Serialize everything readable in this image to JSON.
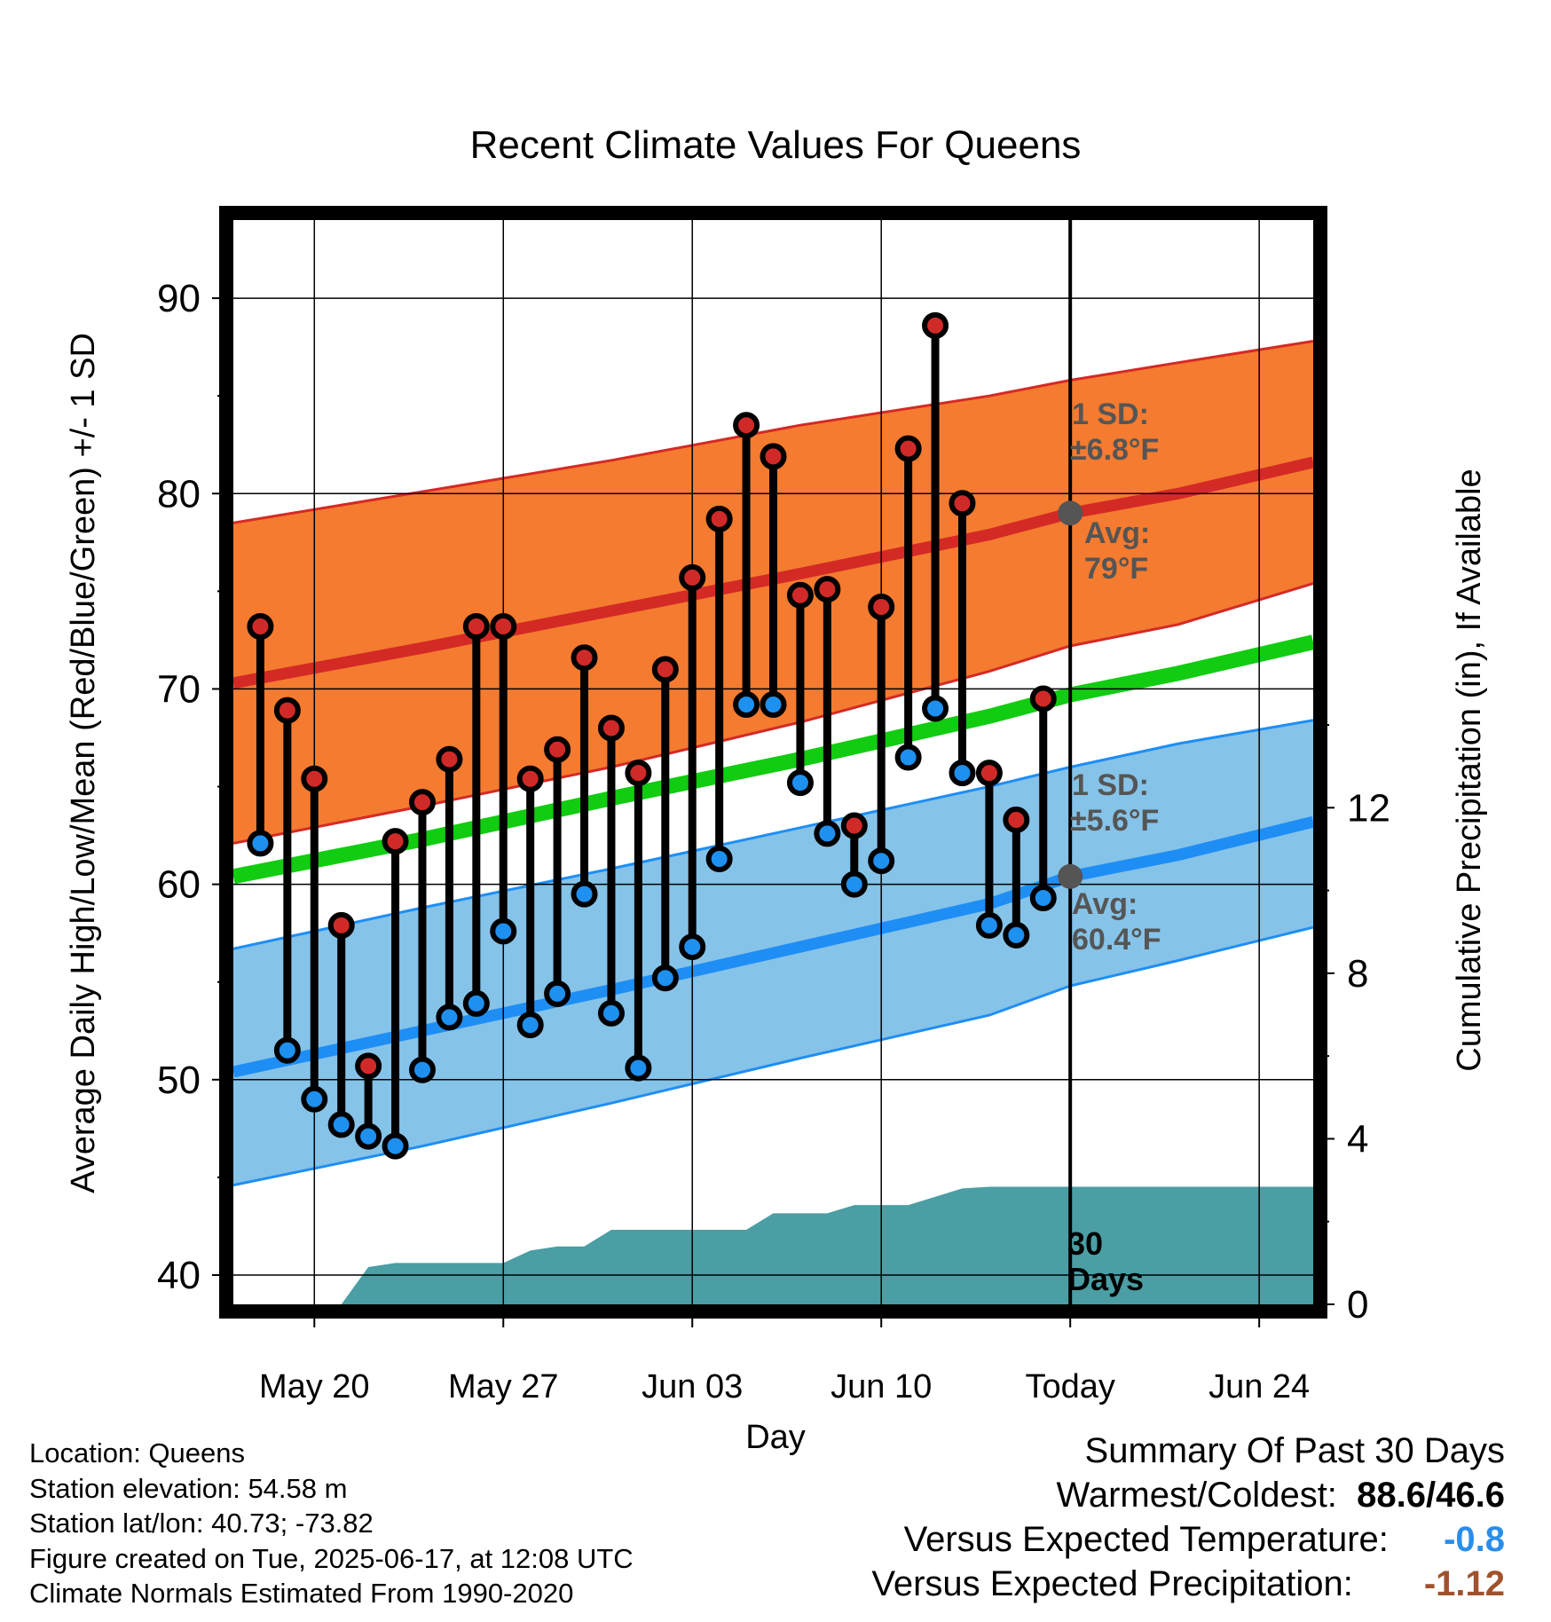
{
  "chart_data": {
    "type": "line",
    "title": "Recent Climate Values For Queens",
    "xlabel": "Day",
    "ylabel": "Average Daily High/Low/Mean (Red/Blue/Green) +/- 1 SD",
    "y2label": "Cumulative Precipitation (in), If Available",
    "ylim": [
      38.5,
      94
    ],
    "y2lim": [
      0,
      26.2
    ],
    "yticks": [
      "40",
      "50",
      "60",
      "70",
      "80",
      "90"
    ],
    "y2ticks": [
      "0",
      "4",
      "8",
      "12"
    ],
    "xlim": [
      "2025-05-17",
      "2025-06-26"
    ],
    "xticks": [
      {
        "date": "2025-05-20",
        "label": "May 20"
      },
      {
        "date": "2025-05-27",
        "label": "May 27"
      },
      {
        "date": "2025-06-03",
        "label": "Jun 03"
      },
      {
        "date": "2025-06-10",
        "label": "Jun 10"
      },
      {
        "date": "2025-06-17",
        "label": "Today"
      },
      {
        "date": "2025-06-24",
        "label": "Jun 24"
      }
    ],
    "grid": true,
    "daily_observations": {
      "dates": [
        "2025-05-18",
        "2025-05-19",
        "2025-05-20",
        "2025-05-21",
        "2025-05-22",
        "2025-05-23",
        "2025-05-24",
        "2025-05-25",
        "2025-05-26",
        "2025-05-27",
        "2025-05-28",
        "2025-05-29",
        "2025-05-30",
        "2025-05-31",
        "2025-06-01",
        "2025-06-02",
        "2025-06-03",
        "2025-06-04",
        "2025-06-05",
        "2025-06-06",
        "2025-06-07",
        "2025-06-08",
        "2025-06-09",
        "2025-06-10",
        "2025-06-11",
        "2025-06-12",
        "2025-06-13",
        "2025-06-14",
        "2025-06-15",
        "2025-06-16"
      ],
      "high": [
        73.2,
        68.9,
        65.4,
        57.9,
        50.7,
        62.2,
        64.2,
        66.4,
        73.2,
        73.2,
        65.4,
        66.9,
        71.6,
        68.0,
        65.7,
        71.0,
        75.7,
        78.7,
        83.5,
        81.9,
        74.8,
        75.1,
        63.0,
        74.2,
        82.3,
        88.6,
        79.5,
        65.7,
        63.3,
        69.5
      ],
      "low": [
        62.1,
        51.5,
        49.0,
        47.7,
        47.1,
        46.6,
        50.5,
        53.2,
        53.9,
        57.6,
        52.8,
        54.4,
        59.5,
        53.4,
        50.6,
        55.2,
        56.8,
        61.3,
        69.2,
        69.2,
        65.2,
        62.6,
        60.0,
        61.2,
        66.5,
        69.0,
        65.7,
        57.9,
        57.4,
        59.3
      ]
    },
    "normals": {
      "dates": [
        "2025-05-17",
        "2025-05-24",
        "2025-05-31",
        "2025-06-07",
        "2025-06-14",
        "2025-06-17",
        "2025-06-21",
        "2025-06-26"
      ],
      "avg_high": [
        70.3,
        72.1,
        74.0,
        75.9,
        77.9,
        79.0,
        80.0,
        81.6
      ],
      "high_upper": [
        78.5,
        80.1,
        81.7,
        83.5,
        85.0,
        85.8,
        86.7,
        87.8
      ],
      "high_lower": [
        62.1,
        64.0,
        66.0,
        68.3,
        70.9,
        72.2,
        73.3,
        75.4
      ],
      "avg_mean": [
        60.4,
        62.3,
        64.4,
        66.4,
        68.6,
        69.7,
        70.8,
        72.4
      ],
      "avg_low": [
        50.4,
        52.5,
        54.6,
        56.8,
        59.0,
        60.4,
        61.5,
        63.2
      ],
      "low_upper": [
        56.7,
        58.8,
        60.8,
        62.9,
        65.0,
        66.0,
        67.2,
        68.4
      ],
      "low_lower": [
        44.6,
        46.6,
        48.8,
        51.1,
        53.3,
        54.8,
        56.1,
        57.8
      ]
    },
    "precipitation": {
      "dates": [
        "2025-05-17",
        "2025-05-21",
        "2025-05-22",
        "2025-05-23",
        "2025-05-27",
        "2025-05-28",
        "2025-05-29",
        "2025-05-30",
        "2025-05-31",
        "2025-06-05",
        "2025-06-06",
        "2025-06-08",
        "2025-06-09",
        "2025-06-11",
        "2025-06-13",
        "2025-06-14",
        "2025-06-26"
      ],
      "cumulative": [
        0,
        0,
        0.9,
        1.0,
        1.0,
        1.3,
        1.4,
        1.4,
        1.8,
        1.8,
        2.2,
        2.2,
        2.4,
        2.4,
        2.8,
        2.84,
        2.84
      ]
    },
    "annotations": {
      "high_sd_label": "1 SD:",
      "high_sd_value": "±6.8°F",
      "high_avg_label": "Avg:",
      "high_avg_value": "79°F",
      "high_avg_today": 79.0,
      "low_sd_label": "1 SD:",
      "low_sd_value": "±5.6°F",
      "low_avg_label": "Avg:",
      "low_avg_value": "60.4°F",
      "low_avg_today": 60.4,
      "days_label_1": "30",
      "days_label_2": "Days"
    },
    "colors": {
      "high_band": "#f47b30",
      "high_line": "#d42a25",
      "mean_line": "#11cc11",
      "low_band": "#86c3e8",
      "low_line": "#1e8ef5",
      "precip_fill": "#4a9ea4",
      "high_marker": "#d02a28",
      "low_marker": "#1e90f0",
      "annotation_text": "#555555"
    }
  },
  "footer": {
    "location": "Location: Queens",
    "elevation": "Station elevation: 54.58 m",
    "latlon": "Station lat/lon: 40.73; -73.82",
    "created": "Figure created on Tue, 2025-06-17, at 12:08 UTC",
    "normals": "Climate Normals Estimated From 1990-2020"
  },
  "summary": {
    "title": "Summary Of Past 30 Days",
    "warm_cold_label": "Warmest/Coldest:",
    "warm_value": "88.6",
    "slash": "/",
    "cold_value": "46.6",
    "temp_label": "Versus Expected Temperature:",
    "temp_value": "-0.8",
    "temp_color": "#2a8ee8",
    "precip_label": "Versus Expected Precipitation:",
    "precip_value": "-1.12",
    "precip_color": "#a0522d"
  }
}
